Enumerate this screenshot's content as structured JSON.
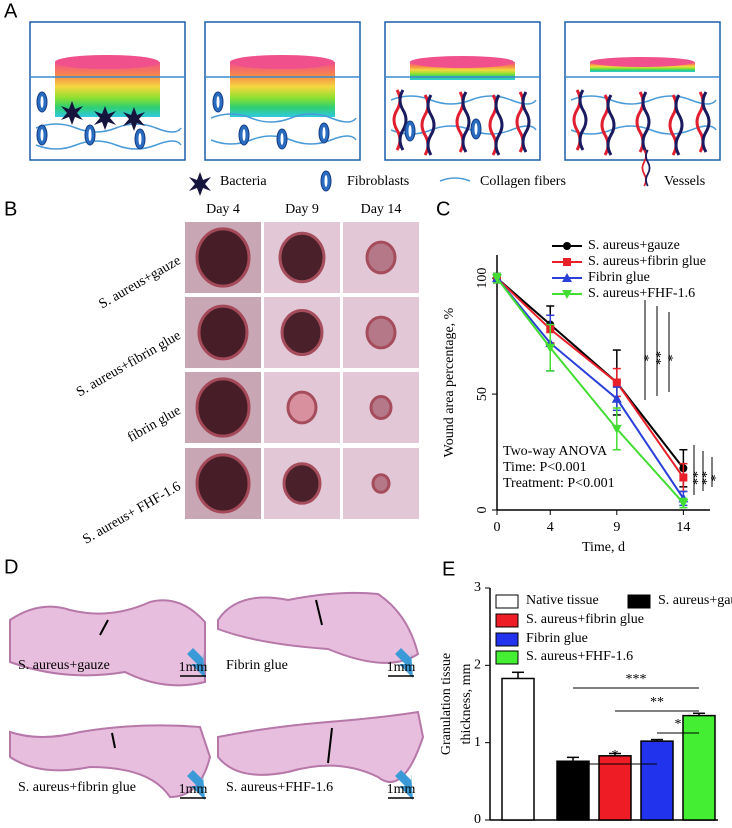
{
  "panel_labels": [
    "A",
    "B",
    "C",
    "D",
    "E"
  ],
  "panel_a": {
    "legend": [
      "Bacteria",
      "Fibroblasts",
      "Collagen fibers",
      "Vessels"
    ]
  },
  "panel_b": {
    "columns": [
      "Day 4",
      "Day 9",
      "Day 14"
    ],
    "rows": [
      "S. aureus+gauze",
      "S. aureus+fibrin glue",
      "fibrin glue",
      "S. aureus+ FHF-1.6"
    ]
  },
  "panel_d": {
    "captions": [
      "S. aureus+gauze",
      "Fibrin glue",
      "S. aureus+fibrin glue",
      "S. aureus+FHF-1.6"
    ],
    "scale_bars": [
      "1mm",
      "1mm",
      "1mm",
      "1mm"
    ]
  },
  "chart_data": [
    {
      "type": "line",
      "x": [
        0,
        4,
        9,
        14
      ],
      "xlim": [
        0,
        16
      ],
      "xticks": [
        0,
        4,
        9,
        14
      ],
      "ylim": [
        0,
        110
      ],
      "yticks": [
        0,
        50,
        100
      ],
      "xlabel": "Time, d",
      "ylabel": "Wound area percentage, %",
      "legend_position": "upper right",
      "annotations": [
        "Two-way ANOVA",
        "Time: P<0.001",
        "Treatment: P<0.001"
      ],
      "significance": {
        "day9": [
          "*",
          "**",
          "*"
        ],
        "day14": [
          "**",
          "**",
          "*"
        ]
      },
      "series": [
        {
          "name": "S. aureus+gauze",
          "color": "#000000",
          "marker": "circle",
          "values": [
            100,
            80,
            55,
            18
          ],
          "errors": [
            2,
            8,
            14,
            8
          ]
        },
        {
          "name": "S. aureus+fibrin glue",
          "color": "#e8202a",
          "marker": "square",
          "values": [
            100,
            78,
            55,
            14
          ],
          "errors": [
            2,
            6,
            6,
            6
          ]
        },
        {
          "name": "Fibrin glue",
          "color": "#2a3fd8",
          "marker": "triangle",
          "values": [
            100,
            72,
            48,
            5
          ],
          "errors": [
            2,
            12,
            5,
            3
          ]
        },
        {
          "name": "S. aureus+FHF-1.6",
          "color": "#44dd33",
          "marker": "triangle-down",
          "values": [
            100,
            70,
            35,
            3
          ],
          "errors": [
            2,
            10,
            9,
            2
          ]
        }
      ]
    },
    {
      "type": "bar",
      "categories": [
        null
      ],
      "ylim": [
        0,
        3
      ],
      "yticks": [
        0,
        1,
        2,
        3
      ],
      "ylabel": [
        "Granulation tissue",
        "thickness, mm"
      ],
      "significance": [
        "***",
        "**",
        "*",
        "*"
      ],
      "series": [
        {
          "name": "Native tissue",
          "color": "#ffffff",
          "values": [
            1.83
          ],
          "errors": [
            0.08
          ]
        },
        {
          "name": "S. aureus+gauze",
          "color": "#000000",
          "values": [
            0.76
          ],
          "errors": [
            0.05
          ]
        },
        {
          "name": "S. aureus+fibrin glue",
          "color": "#ee1c24",
          "values": [
            0.83
          ],
          "errors": [
            0.03
          ]
        },
        {
          "name": "Fibrin glue",
          "color": "#2233ee",
          "values": [
            1.02
          ],
          "errors": [
            0.02
          ]
        },
        {
          "name": "S. aureus+FHF-1.6",
          "color": "#44ee33",
          "values": [
            1.35
          ],
          "errors": [
            0.03
          ]
        }
      ]
    }
  ]
}
